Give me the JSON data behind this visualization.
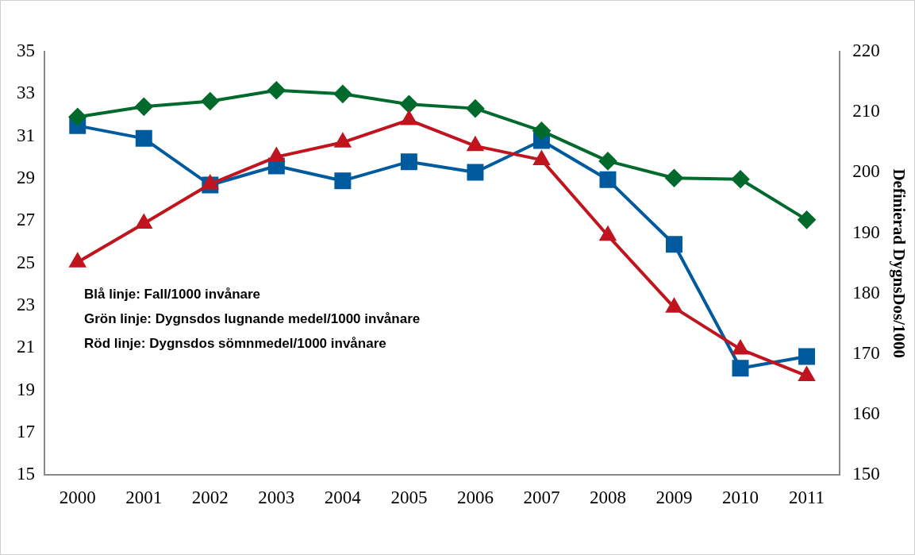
{
  "chart_data": {
    "type": "line",
    "y2label": "Definierad DygnsDos/1000",
    "categories": [
      "2000",
      "2001",
      "2002",
      "2003",
      "2004",
      "2005",
      "2006",
      "2007",
      "2008",
      "2009",
      "2010",
      "2011"
    ],
    "series": [
      {
        "color": "#005a9e",
        "marker": "square",
        "values": [
          31.5,
          30.9,
          28.7,
          29.6,
          28.9,
          29.8,
          29.3,
          30.8,
          28.95,
          25.9,
          20.05,
          20.6
        ]
      },
      {
        "color": "#006a2c",
        "marker": "diamond",
        "axis": "y2",
        "values": [
          209.2,
          210.9,
          211.8,
          213.6,
          213.0,
          211.3,
          210.6,
          206.9,
          201.9,
          199.1,
          198.9,
          192.2
        ]
      },
      {
        "color": "#c0141e",
        "marker": "triangle",
        "axis": "y2",
        "values": [
          185.2,
          191.6,
          198.1,
          202.6,
          205.0,
          208.7,
          204.4,
          202.1,
          189.6,
          177.7,
          170.8,
          166.4
        ]
      }
    ],
    "ylim": [
      15,
      35
    ],
    "yticks": [
      15,
      17,
      19,
      21,
      23,
      25,
      27,
      29,
      31,
      33,
      35
    ],
    "y2lim": [
      150,
      220
    ],
    "y2ticks": [
      150,
      160,
      170,
      180,
      190,
      200,
      210,
      220
    ],
    "annotations": [
      "Blå linje: Fall/1000 invånare",
      "Grön linje: Dygnsdos lugnande medel/1000 invånare",
      "Röd linje: Dygnsdos sömnmedel/1000 invånare"
    ],
    "grid": false,
    "legend": false,
    "line_style": "solid"
  }
}
